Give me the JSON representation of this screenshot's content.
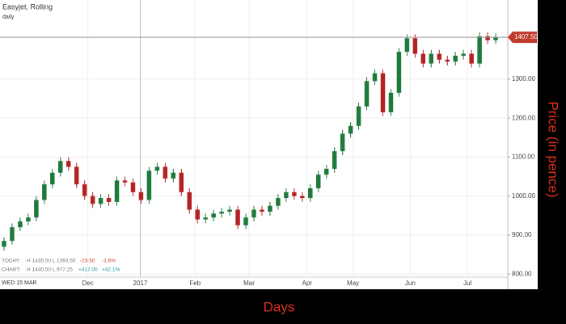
{
  "chart_data": {
    "type": "candlestick",
    "title": "Easyjet, Rolling",
    "subtitle": "daily",
    "x_label": "Days",
    "y_label": "Price (in pence)",
    "cursor_date": "WED 15 MAR",
    "stats": {
      "today_label": "TODAY:",
      "today_range": "H 1435.00 L 1393.50",
      "today_change": "-23.50",
      "today_pct": "-1.6%",
      "chart_label": "CHART:",
      "chart_range": "H 1440.50 L 977.25",
      "chart_change": "+417.00",
      "chart_pct": "+42.1%"
    },
    "last_price": {
      "value": 1407.5,
      "label": "1407.50"
    },
    "up_color": "#1e7a3c",
    "down_color": "#b22222",
    "grid": true,
    "x": [
      0,
      1,
      2,
      3,
      4,
      5,
      6,
      7,
      8,
      9,
      10,
      11,
      12,
      13,
      14,
      15,
      16,
      17,
      18,
      19,
      20,
      21,
      22,
      23,
      24,
      25,
      26,
      27,
      28,
      29,
      30,
      31,
      32,
      33,
      34,
      35,
      36,
      37,
      38,
      39,
      40,
      41,
      42,
      43,
      44,
      45,
      46,
      47,
      48,
      49,
      50,
      51,
      52,
      53,
      54,
      55,
      56,
      57,
      58,
      59,
      60,
      61
    ],
    "open": [
      870,
      885,
      920,
      935,
      945,
      990,
      1030,
      1060,
      1090,
      1075,
      1030,
      1000,
      980,
      995,
      985,
      1040,
      1035,
      1010,
      990,
      1065,
      1075,
      1045,
      1060,
      1010,
      965,
      940,
      945,
      955,
      960,
      965,
      925,
      945,
      965,
      960,
      975,
      995,
      1010,
      1000,
      995,
      1020,
      1055,
      1070,
      1115,
      1160,
      1180,
      1230,
      1295,
      1315,
      1215,
      1265,
      1370,
      1405,
      1365,
      1340,
      1365,
      1350,
      1345,
      1360,
      1365,
      1340,
      1410,
      1400
    ],
    "high": [
      895,
      930,
      945,
      955,
      1000,
      1040,
      1070,
      1100,
      1100,
      1085,
      1040,
      1010,
      1005,
      1005,
      1050,
      1050,
      1045,
      1020,
      1075,
      1085,
      1085,
      1070,
      1070,
      1020,
      975,
      955,
      965,
      970,
      975,
      975,
      955,
      975,
      975,
      985,
      1005,
      1020,
      1020,
      1010,
      1030,
      1065,
      1080,
      1125,
      1170,
      1190,
      1240,
      1305,
      1325,
      1325,
      1275,
      1380,
      1415,
      1415,
      1375,
      1375,
      1375,
      1360,
      1370,
      1375,
      1375,
      1420,
      1420,
      1417.5
    ],
    "low": [
      860,
      875,
      910,
      925,
      935,
      980,
      1020,
      1050,
      1065,
      1020,
      990,
      970,
      970,
      975,
      975,
      1025,
      1000,
      980,
      980,
      1055,
      1035,
      1035,
      1000,
      955,
      930,
      930,
      935,
      945,
      950,
      915,
      915,
      935,
      950,
      950,
      965,
      985,
      990,
      985,
      985,
      1010,
      1045,
      1060,
      1105,
      1150,
      1170,
      1220,
      1285,
      1205,
      1205,
      1255,
      1360,
      1355,
      1330,
      1330,
      1340,
      1335,
      1335,
      1350,
      1330,
      1330,
      1390,
      1390
    ],
    "close": [
      885,
      920,
      935,
      945,
      990,
      1030,
      1060,
      1090,
      1075,
      1030,
      1000,
      980,
      995,
      985,
      1040,
      1035,
      1010,
      990,
      1065,
      1075,
      1045,
      1060,
      1010,
      965,
      940,
      945,
      955,
      960,
      965,
      925,
      945,
      965,
      960,
      975,
      995,
      1010,
      1000,
      995,
      1020,
      1055,
      1070,
      1115,
      1160,
      1180,
      1230,
      1295,
      1315,
      1215,
      1265,
      1370,
      1405,
      1365,
      1340,
      1365,
      1350,
      1345,
      1360,
      1365,
      1340,
      1410,
      1400,
      1407.5
    ],
    "xlim": [
      -0.5,
      62.5
    ],
    "xticks": [
      {
        "value": 10.4,
        "label": "Dec"
      },
      {
        "value": 16.9,
        "label": "2017"
      },
      {
        "value": 23.7,
        "label": "Feb"
      },
      {
        "value": 30.4,
        "label": "Mar"
      },
      {
        "value": 37.6,
        "label": "Apr"
      },
      {
        "value": 43.3,
        "label": "May"
      },
      {
        "value": 50.4,
        "label": "Jun"
      },
      {
        "value": 57.5,
        "label": "Jul"
      }
    ],
    "ylim": [
      792,
      1503
    ],
    "yticks": [
      {
        "value": 800,
        "label": "800.00"
      },
      {
        "value": 900,
        "label": "900.00"
      },
      {
        "value": 1000,
        "label": "1000.00"
      },
      {
        "value": 1100,
        "label": "1100.00"
      },
      {
        "value": 1200,
        "label": "1200.00"
      },
      {
        "value": 1300,
        "label": "1300.00"
      }
    ]
  }
}
